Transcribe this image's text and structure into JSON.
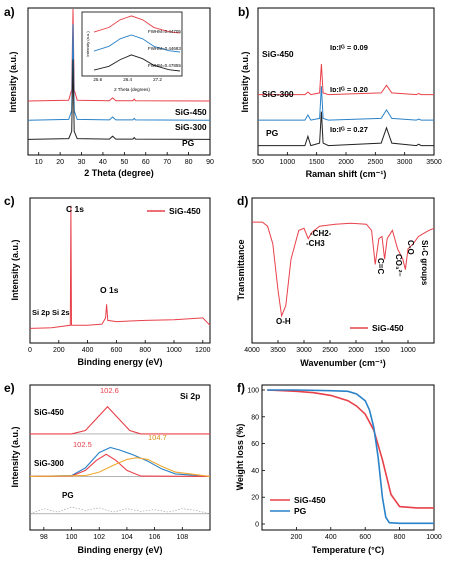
{
  "chart_data": [
    {
      "panel": "a)",
      "type": "line",
      "xlabel": "2 Theta (degree)",
      "ylabel": "Intensity (a.u.)",
      "xlim": [
        5,
        90
      ],
      "xticks": [
        10,
        20,
        30,
        40,
        50,
        60,
        70,
        80,
        90
      ],
      "series": [
        {
          "name": "SiG-450",
          "color": "#e8404a",
          "baseline": 3,
          "x": [
            5,
            24,
            25.4,
            26.0,
            26.6,
            28,
            43,
            44.5,
            46,
            54,
            54.6,
            55.2,
            90
          ],
          "y": [
            0,
            0.05,
            0.7,
            6.5,
            0.7,
            0.05,
            0.02,
            0.2,
            0.02,
            0.02,
            0.12,
            0.02,
            0
          ]
        },
        {
          "name": "SiG-300",
          "color": "#2a82c8",
          "baseline": 1.8,
          "x": [
            5,
            24,
            25.4,
            26.0,
            26.6,
            28,
            43,
            44.5,
            46,
            54,
            54.6,
            55.2,
            90
          ],
          "y": [
            0,
            0.05,
            0.6,
            6.0,
            0.6,
            0.05,
            0.02,
            0.2,
            0.02,
            0.02,
            0.12,
            0.02,
            0
          ]
        },
        {
          "name": "PG",
          "color": "#222222",
          "baseline": 0.6,
          "x": [
            5,
            24,
            25.4,
            26.0,
            26.6,
            28,
            43,
            44.5,
            46,
            54,
            54.6,
            55.2,
            90
          ],
          "y": [
            0,
            0.05,
            0.5,
            5.0,
            0.5,
            0.05,
            0.02,
            0.2,
            0.02,
            0.02,
            0.12,
            0.02,
            0
          ]
        }
      ],
      "inset": {
        "xlabel": "2 Theta (degrees)",
        "ylabel": "Intensity (a.u.)",
        "xlim": [
          25.5,
          27.8
        ],
        "xticks": [
          "25.6",
          "26.4",
          "27.2"
        ],
        "series": [
          {
            "name": "SiG-450",
            "color": "#e8404a",
            "baseline": 2.0,
            "label": "FWHM=0.44705",
            "x": [
              25.5,
              25.9,
              26.2,
              26.5,
              26.8,
              27.1,
              27.5,
              27.8
            ],
            "y": [
              0.1,
              0.35,
              0.75,
              0.95,
              0.75,
              0.35,
              0.12,
              0.05
            ]
          },
          {
            "name": "SiG-300",
            "color": "#2a82c8",
            "baseline": 1.0,
            "label": "FWHM=0.44683",
            "x": [
              25.5,
              25.9,
              26.2,
              26.5,
              26.8,
              27.1,
              27.5,
              27.8
            ],
            "y": [
              0.1,
              0.35,
              0.75,
              0.95,
              0.75,
              0.35,
              0.12,
              0.05
            ]
          },
          {
            "name": "PG",
            "color": "#222222",
            "baseline": 0.0,
            "label": "FWHM=0.47855",
            "x": [
              25.5,
              25.9,
              26.2,
              26.5,
              26.8,
              27.1,
              27.5,
              27.8
            ],
            "y": [
              0.1,
              0.3,
              0.65,
              0.9,
              0.7,
              0.35,
              0.12,
              0.05
            ]
          }
        ]
      }
    },
    {
      "panel": "b)",
      "type": "line",
      "xlabel": "Raman shift (cm⁻¹)",
      "ylabel": "Intensity (a.u.)",
      "xlim": [
        500,
        3500
      ],
      "xticks": [
        500,
        1000,
        1500,
        2000,
        2500,
        3000,
        3500
      ],
      "series": [
        {
          "name": "SiG-450",
          "color": "#e8404a",
          "baseline": 3.2,
          "ratio_label": "Iᴅ:Iᴳ = 0.09",
          "x": [
            500,
            1300,
            1350,
            1400,
            1550,
            1580,
            1610,
            1700,
            2600,
            2690,
            2780,
            3200,
            3240,
            3280,
            3500
          ],
          "y": [
            0,
            0,
            0.15,
            0,
            0.1,
            1.8,
            0.1,
            0,
            0.1,
            0.55,
            0.1,
            0,
            0.06,
            0,
            0
          ]
        },
        {
          "name": "SiG-300",
          "color": "#2a82c8",
          "baseline": 1.7,
          "ratio_label": "Iᴅ:Iᴳ = 0.20",
          "x": [
            500,
            1300,
            1350,
            1400,
            1550,
            1580,
            1610,
            1700,
            2600,
            2690,
            2780,
            3200,
            3240,
            3280,
            3500
          ],
          "y": [
            0,
            0,
            0.3,
            0,
            0.1,
            2.0,
            0.1,
            0,
            0.1,
            0.6,
            0.1,
            0,
            0.06,
            0,
            0
          ]
        },
        {
          "name": "PG",
          "color": "#222222",
          "baseline": 0.2,
          "ratio_label": "Iᴅ:Iᴳ = 0.27",
          "x": [
            500,
            1300,
            1350,
            1400,
            1550,
            1580,
            1610,
            1700,
            2600,
            2690,
            2780,
            3200,
            3240,
            3280,
            3500
          ],
          "y": [
            0,
            0,
            0.55,
            0,
            0.15,
            2.0,
            0.15,
            0,
            0.15,
            1.05,
            0.15,
            0,
            0.08,
            0,
            0
          ]
        }
      ]
    },
    {
      "panel": "c)",
      "type": "line",
      "xlabel": "Binding energy (eV)",
      "ylabel": "Intensity (a.u.)",
      "xlim": [
        0,
        1250
      ],
      "xticks": [
        0,
        200,
        400,
        600,
        800,
        1000,
        1200
      ],
      "legend": "SiG-450",
      "legend_position": "top-right",
      "peak_labels": [
        "C 1s",
        "O 1s",
        "Si 2p Si 2s"
      ],
      "series": [
        {
          "name": "SiG-450",
          "color": "#e8404a",
          "x": [
            0,
            100,
            150,
            280,
            284,
            288,
            300,
            400,
            500,
            525,
            532,
            540,
            600,
            800,
            1000,
            1200,
            1250
          ],
          "y": [
            0.05,
            0.08,
            0.1,
            0.3,
            10,
            0.3,
            0.3,
            0.3,
            0.4,
            0.9,
            2.0,
            0.7,
            0.6,
            0.7,
            0.75,
            0.9,
            0.3
          ]
        }
      ]
    },
    {
      "panel": "d)",
      "type": "line",
      "xlabel": "Wavenumber (cm⁻¹)",
      "ylabel": "Transmittance",
      "xlim": [
        4000,
        500
      ],
      "xticks": [
        4000,
        3500,
        3000,
        2500,
        2000,
        1500,
        1000
      ],
      "legend": "SiG-450",
      "legend_position": "bottom-right",
      "band_labels": [
        "O-H",
        "-CH2-",
        "-CH3",
        "C=C",
        "CO₃²⁻",
        "C-O",
        "Si-C groups"
      ],
      "series": [
        {
          "name": "SiG-450",
          "color": "#e8404a",
          "x": [
            4000,
            3800,
            3700,
            3600,
            3500,
            3430,
            3350,
            3250,
            3100,
            3000,
            2920,
            2850,
            2700,
            2400,
            2100,
            1800,
            1700,
            1630,
            1560,
            1500,
            1450,
            1400,
            1300,
            1200,
            1100,
            1050,
            1000,
            900,
            800,
            700,
            600,
            500
          ],
          "y": [
            96,
            96,
            92,
            75,
            30,
            5,
            15,
            60,
            88,
            90,
            80,
            86,
            92,
            94,
            95,
            94,
            88,
            55,
            80,
            82,
            60,
            80,
            88,
            70,
            60,
            50,
            70,
            75,
            82,
            85,
            88,
            90
          ]
        }
      ]
    },
    {
      "panel": "e)",
      "type": "line",
      "title": "Si 2p",
      "xlabel": "Binding energy (eV)",
      "ylabel": "Intensity (a.u.)",
      "xlim": [
        97,
        110
      ],
      "xticks": [
        98,
        100,
        102,
        104,
        106,
        108
      ],
      "series_labels": [
        "SiG-450",
        "SiG-300",
        "PG"
      ],
      "peak_labels": [
        "102.6",
        "102.5",
        "104.7"
      ],
      "series": [
        {
          "name": "SiG-450 fit",
          "color": "#e8404a",
          "baseline": 5.3,
          "x": [
            97,
            100,
            101,
            101.8,
            102.6,
            103.4,
            104.2,
            105,
            110
          ],
          "y": [
            0,
            0,
            0.2,
            0.9,
            1.6,
            0.9,
            0.2,
            0,
            0
          ]
        },
        {
          "name": "SiG-300 envelope",
          "color": "#2a82c8",
          "baseline": 2.8,
          "x": [
            97,
            100,
            101,
            102,
            102.8,
            103.5,
            104.5,
            105.5,
            106.5,
            107.5,
            110
          ],
          "y": [
            0,
            0.05,
            0.5,
            1.4,
            1.7,
            1.55,
            1.25,
            0.9,
            0.45,
            0.15,
            0
          ]
        },
        {
          "name": "102.5 component",
          "color": "#e8404a",
          "baseline": 2.8,
          "x": [
            97,
            100,
            101,
            101.8,
            102.5,
            103.2,
            104,
            105,
            110
          ],
          "y": [
            0,
            0.02,
            0.35,
            0.95,
            1.3,
            0.95,
            0.35,
            0.02,
            0
          ]
        },
        {
          "name": "104.7 component",
          "color": "#f0a830",
          "baseline": 2.8,
          "x": [
            97,
            101,
            102,
            103,
            104,
            104.7,
            105.5,
            106.5,
            107.5,
            110
          ],
          "y": [
            0,
            0.05,
            0.25,
            0.65,
            1.0,
            1.1,
            1.0,
            0.6,
            0.25,
            0
          ]
        },
        {
          "name": "PG",
          "color": "#999999",
          "baseline": 0.6,
          "x": [
            97,
            98,
            99,
            100,
            101,
            102,
            103,
            104,
            105,
            106,
            107,
            108,
            109,
            110
          ],
          "y": [
            0,
            0.3,
            0.1,
            0.4,
            0.2,
            0.35,
            0.1,
            0.3,
            0.15,
            0.25,
            0.1,
            0.3,
            0.2,
            0
          ]
        }
      ]
    },
    {
      "panel": "f)",
      "type": "line",
      "xlabel": "Temperature (°C)",
      "ylabel": "Weight loss (%)",
      "xlim": [
        0,
        1000
      ],
      "ylim": [
        0,
        100
      ],
      "xticks": [
        200,
        400,
        600,
        800,
        1000
      ],
      "yticks": [
        0,
        20,
        40,
        60,
        80,
        100
      ],
      "legend_position": "bottom-left",
      "series": [
        {
          "name": "SiG-450",
          "color": "#e8404a",
          "x": [
            30,
            200,
            300,
            400,
            500,
            550,
            600,
            650,
            700,
            750,
            800,
            900,
            1000
          ],
          "y": [
            100,
            99,
            98,
            96,
            92,
            88,
            82,
            70,
            48,
            22,
            13,
            12,
            12
          ]
        },
        {
          "name": "PG",
          "color": "#2a82c8",
          "x": [
            30,
            200,
            400,
            500,
            550,
            600,
            625,
            650,
            675,
            700,
            720,
            740,
            800,
            900,
            1000
          ],
          "y": [
            100,
            100,
            99.5,
            99,
            97,
            92,
            85,
            72,
            50,
            20,
            5,
            1,
            0.5,
            0.5,
            0.5
          ]
        }
      ]
    }
  ]
}
